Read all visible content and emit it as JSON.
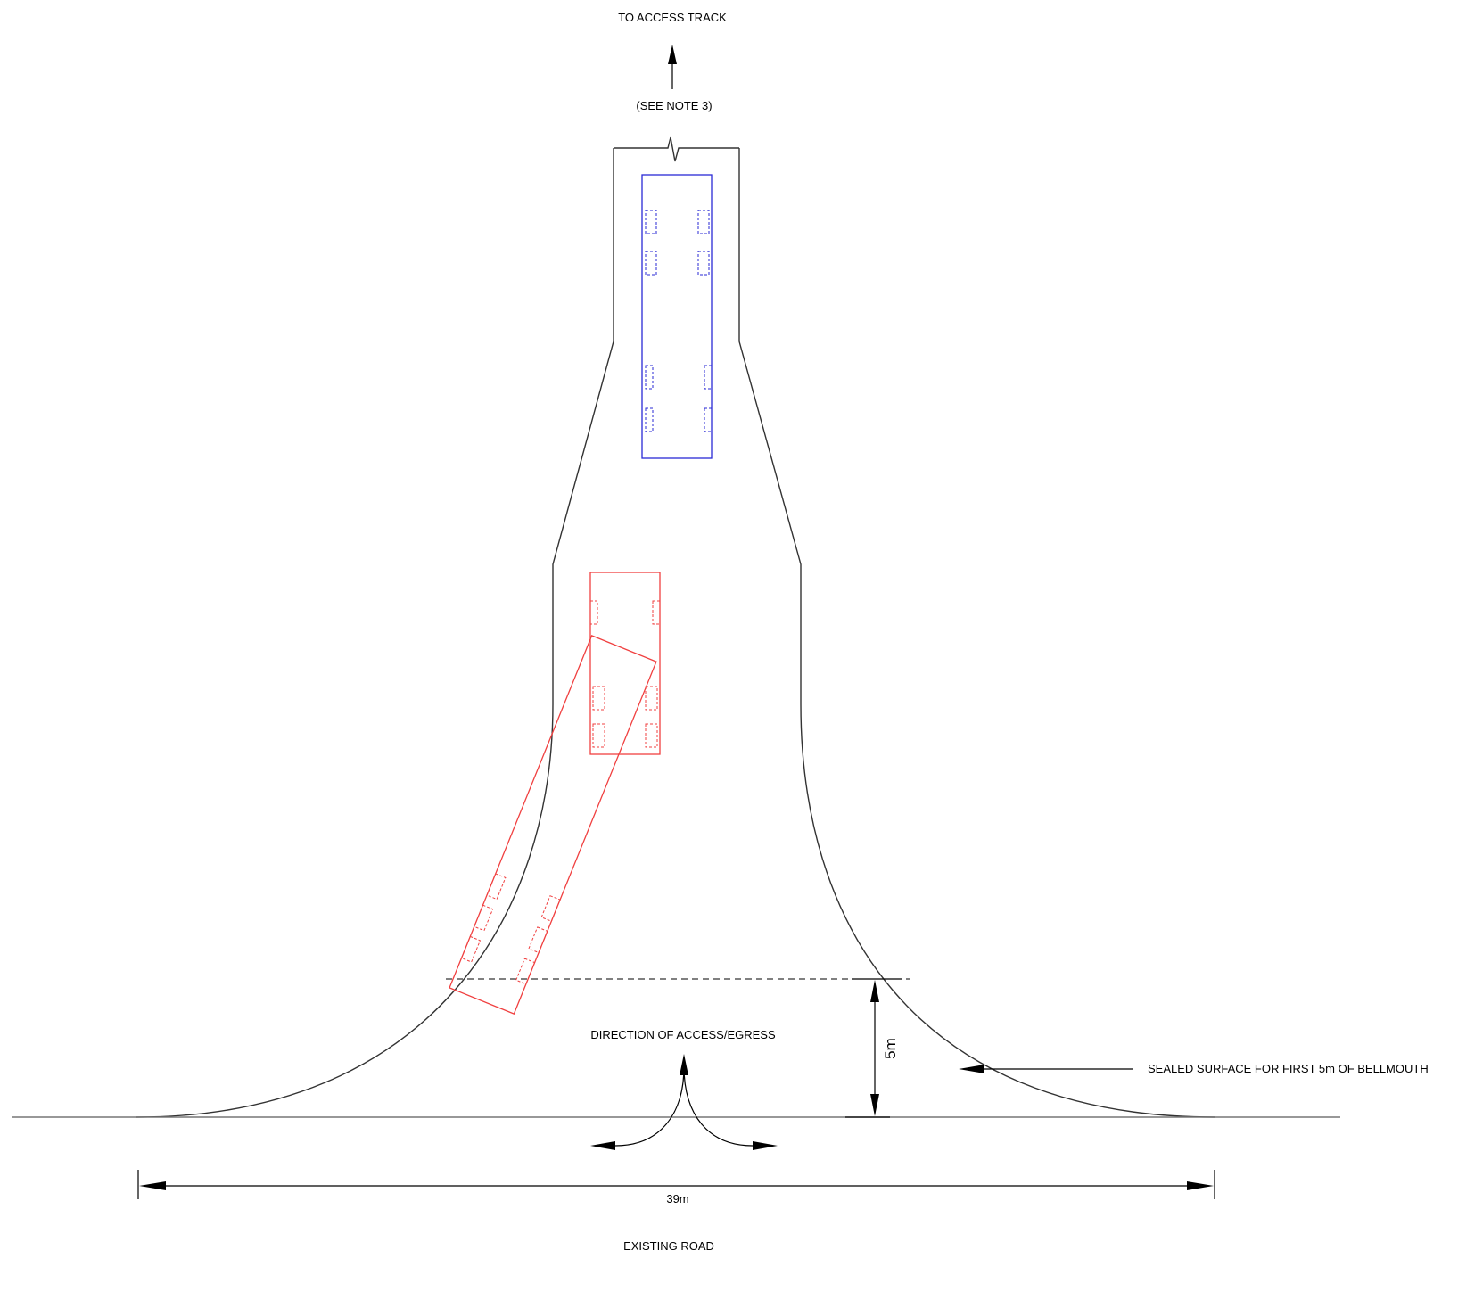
{
  "labels": {
    "to_access_track": "TO ACCESS TRACK",
    "see_note": "(SEE NOTE 3)",
    "direction": "DIRECTION OF ACCESS/EGRESS",
    "sealed_surface": "SEALED SURFACE FOR FIRST 5m OF BELLMOUTH",
    "existing_road": "EXISTING ROAD"
  },
  "dimensions": {
    "width_label": "39m",
    "depth_label": "5m"
  },
  "colors": {
    "rigid_vehicle": "#2a2ad6",
    "articulated_vehicle": "#f04040",
    "linework": "#333333"
  }
}
